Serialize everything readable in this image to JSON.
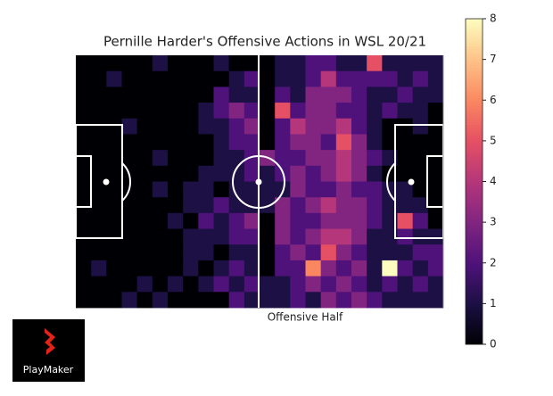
{
  "chart_data": {
    "type": "heatmap",
    "title": "Pernille Harder's Offensive Actions in WSL 20/21",
    "xlabel": "Offensive Half",
    "colormap": "magma",
    "zlim": [
      0,
      8
    ],
    "zticks": [
      0,
      1,
      2,
      3,
      4,
      5,
      6,
      7,
      8
    ],
    "values": [
      [
        0,
        0,
        0,
        0,
        0,
        1,
        0,
        0,
        0,
        1,
        0,
        0,
        0,
        1,
        1,
        2,
        2,
        1,
        1,
        5,
        1,
        1,
        1,
        1
      ],
      [
        0,
        0,
        1,
        0,
        0,
        0,
        0,
        0,
        0,
        0,
        1,
        2,
        0,
        1,
        1,
        2,
        4,
        2,
        2,
        2,
        2,
        1,
        2,
        1
      ],
      [
        0,
        0,
        0,
        0,
        0,
        0,
        0,
        0,
        0,
        2,
        1,
        1,
        0,
        2,
        1,
        3,
        3,
        3,
        2,
        1,
        1,
        2,
        1,
        1
      ],
      [
        0,
        0,
        0,
        0,
        0,
        0,
        0,
        0,
        1,
        2,
        3,
        2,
        0,
        5,
        2,
        3,
        3,
        2,
        2,
        1,
        2,
        1,
        1,
        0
      ],
      [
        0,
        0,
        0,
        1,
        0,
        0,
        0,
        0,
        1,
        1,
        2,
        3,
        0,
        2,
        4,
        3,
        3,
        4,
        2,
        1,
        0,
        0,
        1,
        0
      ],
      [
        0,
        0,
        0,
        0,
        0,
        0,
        0,
        0,
        0,
        1,
        2,
        2,
        0,
        2,
        3,
        3,
        2,
        5,
        3,
        1,
        0,
        0,
        0,
        0
      ],
      [
        0,
        0,
        0,
        0,
        0,
        1,
        0,
        0,
        0,
        1,
        1,
        2,
        3,
        2,
        2,
        3,
        3,
        4,
        3,
        2,
        1,
        0,
        0,
        0
      ],
      [
        0,
        0,
        0,
        0,
        0,
        0,
        0,
        0,
        1,
        1,
        1,
        2,
        1,
        2,
        3,
        2,
        3,
        4,
        3,
        1,
        0,
        0,
        0,
        0
      ],
      [
        0,
        0,
        0,
        0,
        0,
        1,
        0,
        1,
        1,
        0,
        1,
        1,
        1,
        1,
        3,
        2,
        2,
        3,
        2,
        2,
        1,
        1,
        0,
        0
      ],
      [
        0,
        0,
        0,
        0,
        0,
        0,
        0,
        1,
        1,
        2,
        1,
        1,
        1,
        3,
        2,
        3,
        4,
        3,
        3,
        2,
        1,
        1,
        1,
        0
      ],
      [
        0,
        0,
        0,
        0,
        0,
        0,
        1,
        0,
        2,
        1,
        2,
        3,
        0,
        3,
        2,
        2,
        3,
        3,
        3,
        2,
        1,
        5,
        2,
        0
      ],
      [
        0,
        0,
        0,
        0,
        0,
        0,
        0,
        1,
        1,
        1,
        2,
        2,
        0,
        3,
        2,
        3,
        4,
        4,
        3,
        1,
        1,
        2,
        1,
        1
      ],
      [
        0,
        0,
        0,
        0,
        0,
        0,
        0,
        1,
        1,
        0,
        1,
        1,
        0,
        2,
        3,
        2,
        5,
        3,
        2,
        1,
        1,
        1,
        2,
        2
      ],
      [
        0,
        1,
        0,
        0,
        0,
        0,
        0,
        1,
        0,
        1,
        2,
        1,
        0,
        2,
        2,
        6,
        3,
        2,
        3,
        1,
        8,
        2,
        1,
        2
      ],
      [
        0,
        0,
        0,
        0,
        1,
        0,
        1,
        0,
        1,
        2,
        1,
        2,
        1,
        1,
        2,
        3,
        2,
        3,
        2,
        1,
        2,
        1,
        2,
        1
      ],
      [
        0,
        0,
        0,
        1,
        0,
        1,
        0,
        0,
        0,
        0,
        2,
        1,
        1,
        1,
        2,
        1,
        3,
        2,
        3,
        2,
        1,
        1,
        1,
        1
      ]
    ],
    "logo_text": "PlayMaker"
  }
}
